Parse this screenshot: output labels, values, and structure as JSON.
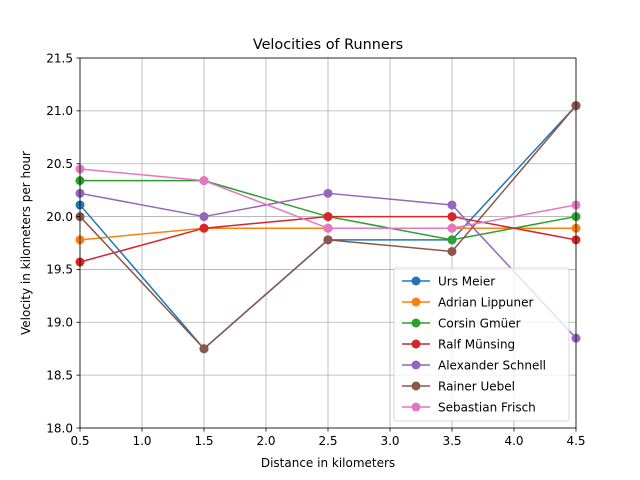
{
  "chart_data": {
    "type": "line",
    "title": "Velocities of Runners",
    "xlabel": "Distance in kilometers",
    "ylabel": "Velocity in kilometers per hour",
    "xlim": [
      0.5,
      4.5
    ],
    "ylim": [
      18.0,
      21.5
    ],
    "xticks": [
      "0.5",
      "1.0",
      "1.5",
      "2.0",
      "2.5",
      "3.0",
      "3.5",
      "4.0",
      "4.5"
    ],
    "yticks": [
      "18.0",
      "18.5",
      "19.0",
      "19.5",
      "20.0",
      "20.5",
      "21.0",
      "21.5"
    ],
    "grid": true,
    "legend_position": "lower-right",
    "x": [
      0.5,
      1.5,
      2.5,
      3.5,
      4.5
    ],
    "series": [
      {
        "name": "Urs Meier",
        "color": "#1f77b4",
        "values": [
          20.11,
          18.75,
          19.78,
          19.78,
          21.05
        ]
      },
      {
        "name": "Adrian Lippuner",
        "color": "#ff7f0e",
        "values": [
          19.78,
          19.89,
          19.89,
          19.89,
          19.89
        ]
      },
      {
        "name": "Corsin Gmüer",
        "color": "#2ca02c",
        "values": [
          20.34,
          20.34,
          20.0,
          19.78,
          20.0
        ]
      },
      {
        "name": "Ralf Münsing",
        "color": "#d62728",
        "values": [
          19.57,
          19.89,
          20.0,
          20.0,
          19.78
        ]
      },
      {
        "name": "Alexander Schnell",
        "color": "#9467bd",
        "values": [
          20.22,
          20.0,
          20.22,
          20.11,
          18.85
        ]
      },
      {
        "name": "Rainer Uebel",
        "color": "#8c564b",
        "values": [
          20.0,
          18.75,
          19.78,
          19.67,
          21.05
        ]
      },
      {
        "name": "Sebastian Frisch",
        "color": "#e377c2",
        "values": [
          20.45,
          20.34,
          19.89,
          19.89,
          20.11
        ]
      }
    ]
  }
}
